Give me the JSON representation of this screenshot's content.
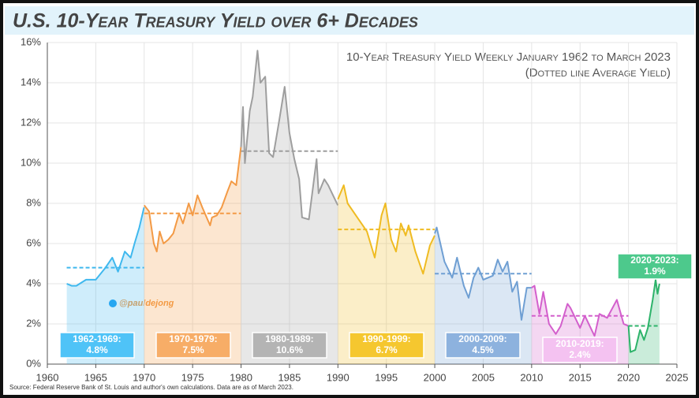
{
  "chart_data": {
    "type": "line",
    "title": "U.S. 10-Year Treasury Yield over 6+ Decades",
    "annotation": "10-Year Treasury Yield Weekly January 1962 to March 2023",
    "annotation2": "(Dotted line Average Yield)",
    "source": "Source: Federal Reserve Bank of St. Louis and author's own calculations. Data are as of March 2023.",
    "watermark": "@pauldejong",
    "xlim": [
      1960,
      2025
    ],
    "xticks": [
      1960,
      1965,
      1970,
      1975,
      1980,
      1985,
      1990,
      1995,
      2000,
      2005,
      2010,
      2015,
      2020,
      2025
    ],
    "ylim": [
      0,
      16
    ],
    "yticks": [
      {
        "value": 0,
        "label": "0%"
      },
      {
        "value": 2,
        "label": "2%"
      },
      {
        "value": 4,
        "label": "4%"
      },
      {
        "value": 6,
        "label": "6%"
      },
      {
        "value": 8,
        "label": "8%"
      },
      {
        "value": 10,
        "label": "10%"
      },
      {
        "value": 12,
        "label": "12%"
      },
      {
        "value": 14,
        "label": "14%"
      },
      {
        "value": 16,
        "label": "16%"
      }
    ],
    "grid": true,
    "series": [
      {
        "name": "1962-1969:",
        "color": "#3fb8ee",
        "average": {
          "value": 4.8,
          "label": "4.8%"
        },
        "x": [
          1962,
          1962.5,
          1963,
          1964,
          1965,
          1966,
          1966.7,
          1967.3,
          1968,
          1968.6,
          1969,
          1969.5,
          1969.99
        ],
        "values": [
          4.0,
          3.9,
          3.9,
          4.2,
          4.2,
          4.8,
          5.3,
          4.6,
          5.6,
          5.3,
          6.0,
          6.8,
          7.8
        ]
      },
      {
        "name": "1970-1979:",
        "color": "#f39a45",
        "average": {
          "value": 7.5,
          "label": "7.5%"
        },
        "x": [
          1970,
          1970.5,
          1971,
          1971.3,
          1971.6,
          1972,
          1972.5,
          1973,
          1973.6,
          1974,
          1974.6,
          1975,
          1975.5,
          1976,
          1976.8,
          1977,
          1977.5,
          1978,
          1978.6,
          1979,
          1979.5,
          1979.99
        ],
        "values": [
          7.9,
          7.6,
          6.0,
          5.6,
          6.6,
          6.0,
          6.2,
          6.5,
          7.5,
          7.0,
          8.0,
          7.4,
          8.4,
          7.8,
          6.9,
          7.3,
          7.4,
          7.8,
          8.6,
          9.1,
          8.9,
          10.8
        ]
      },
      {
        "name": "1980-1989:",
        "color": "#9e9e9e",
        "average": {
          "value": 10.6,
          "label": "10.6%"
        },
        "x": [
          1980,
          1980.2,
          1980.4,
          1980.9,
          1981.2,
          1981.7,
          1982,
          1982.5,
          1982.9,
          1983.3,
          1983.9,
          1984.5,
          1985,
          1985.5,
          1986,
          1986.3,
          1987,
          1987.8,
          1988,
          1988.6,
          1989,
          1989.99
        ],
        "values": [
          10.8,
          12.8,
          10.0,
          12.6,
          13.3,
          15.6,
          14.0,
          14.3,
          10.5,
          10.3,
          12.0,
          13.8,
          11.5,
          10.2,
          9.2,
          7.3,
          7.2,
          10.2,
          8.5,
          9.2,
          8.9,
          7.9
        ]
      },
      {
        "name": "1990-1999:",
        "color": "#efbb22",
        "average": {
          "value": 6.7,
          "label": "6.7%"
        },
        "x": [
          1990,
          1990.6,
          1991,
          1992,
          1993,
          1993.8,
          1994.5,
          1994.9,
          1995.5,
          1996,
          1996.5,
          1997,
          1997.3,
          1998,
          1998.8,
          1999.5,
          1999.99
        ],
        "values": [
          8.2,
          8.9,
          8.0,
          7.3,
          6.6,
          5.3,
          7.4,
          8.0,
          6.2,
          5.6,
          7.0,
          6.4,
          6.9,
          5.6,
          4.5,
          5.9,
          6.4
        ]
      },
      {
        "name": "2000-2009:",
        "color": "#6f9fd3",
        "average": {
          "value": 4.5,
          "label": "4.5%"
        },
        "x": [
          2000,
          2000.2,
          2001,
          2001.8,
          2002.3,
          2003,
          2003.5,
          2004,
          2004.5,
          2005,
          2006,
          2006.5,
          2007,
          2007.5,
          2008,
          2008.5,
          2008.95,
          2009.5,
          2009.99
        ],
        "values": [
          6.5,
          6.8,
          5.1,
          4.3,
          5.3,
          3.9,
          3.3,
          4.3,
          4.8,
          4.2,
          4.4,
          5.2,
          4.6,
          5.1,
          3.6,
          4.1,
          2.2,
          3.8,
          3.8
        ]
      },
      {
        "name": "2010-2019:",
        "color": "#d35fcc",
        "average": {
          "value": 2.4,
          "label": "2.4%"
        },
        "x": [
          2010,
          2010.3,
          2010.8,
          2011.2,
          2011.8,
          2012.5,
          2013,
          2013.7,
          2014,
          2015,
          2015.5,
          2016,
          2016.5,
          2017,
          2017.8,
          2018.8,
          2019.5,
          2019.99
        ],
        "values": [
          3.8,
          3.9,
          2.5,
          3.6,
          2.0,
          1.5,
          1.9,
          3.0,
          2.8,
          1.8,
          2.4,
          1.9,
          1.4,
          2.5,
          2.3,
          3.2,
          2.0,
          1.9
        ]
      },
      {
        "name": "2020-2023:",
        "color": "#2db36a",
        "average": {
          "value": 1.9,
          "label": "1.9%"
        },
        "x": [
          2020,
          2020.2,
          2020.7,
          2021.2,
          2021.6,
          2022,
          2022.5,
          2022.8,
          2023,
          2023.2
        ],
        "values": [
          1.9,
          0.6,
          0.7,
          1.7,
          1.2,
          1.8,
          3.2,
          4.2,
          3.5,
          4.0
        ]
      }
    ]
  }
}
